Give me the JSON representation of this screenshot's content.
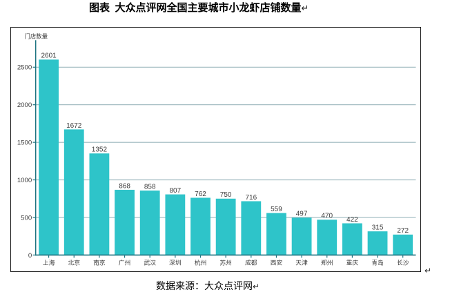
{
  "document": {
    "title": "图表  大众点评网全国主要城市小龙虾店铺数量",
    "source_text": "数据来源：大众点评网",
    "paragraph_mark": "↵"
  },
  "chart_data": {
    "type": "bar",
    "title": "",
    "ylabel": "门店数量",
    "xlabel": "",
    "categories": [
      "上海",
      "北京",
      "南京",
      "广州",
      "武汉",
      "深圳",
      "杭州",
      "苏州",
      "成都",
      "西安",
      "天津",
      "郑州",
      "重庆",
      "青岛",
      "长沙"
    ],
    "values": [
      2601,
      1672,
      1352,
      868,
      858,
      807,
      762,
      750,
      716,
      559,
      497,
      470,
      422,
      315,
      272
    ],
    "y_ticks": [
      0,
      500,
      1000,
      1500,
      2000,
      2500
    ],
    "ylim": [
      0,
      2850
    ],
    "grid": "horizontal",
    "legend": "none",
    "bar_color": "#2ec4c9",
    "axis_color": "#1c7380",
    "gridline_color": "#9bb7bd",
    "value_label_color": "#3c3c3c",
    "tick_label_color": "#3c3c3c",
    "frame_border_color": "#191919"
  }
}
